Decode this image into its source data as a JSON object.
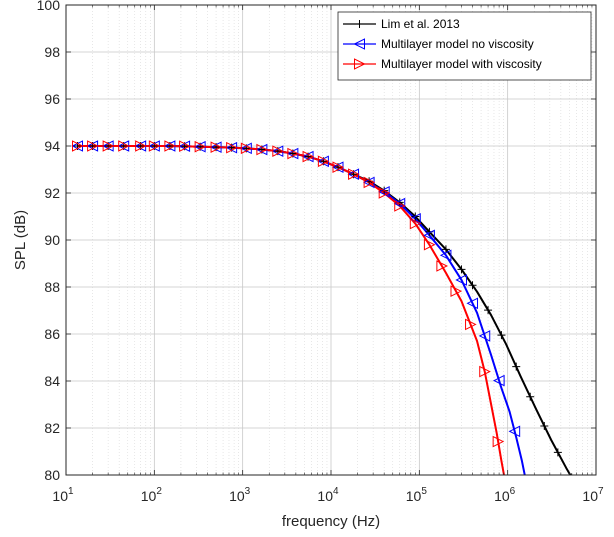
{
  "chart_data": {
    "type": "line",
    "title": "",
    "xlabel": "frequency (Hz)",
    "ylabel": "SPL (dB)",
    "xscale": "log",
    "xlim": [
      10,
      10000000
    ],
    "ylim": [
      80,
      100
    ],
    "x_ticks": [
      {
        "base": "10",
        "exp": "1"
      },
      {
        "base": "10",
        "exp": "2"
      },
      {
        "base": "10",
        "exp": "3"
      },
      {
        "base": "10",
        "exp": "4"
      },
      {
        "base": "10",
        "exp": "5"
      },
      {
        "base": "10",
        "exp": "6"
      },
      {
        "base": "10",
        "exp": "7"
      }
    ],
    "y_ticks": [
      "80",
      "82",
      "84",
      "86",
      "88",
      "90",
      "92",
      "94",
      "96",
      "98",
      "100"
    ],
    "grid": true,
    "legend_position": "top-right",
    "series": [
      {
        "name": "Lim et al. 2013",
        "color": "#000000",
        "marker": "plus",
        "x": [
          13.5,
          20,
          30,
          45,
          70,
          100,
          150,
          220,
          330,
          500,
          750,
          1100,
          1650,
          2500,
          3700,
          5500,
          8200,
          12000,
          18000,
          27000,
          40000,
          60000,
          90000,
          130000,
          200000,
          300000,
          450000,
          650000,
          950000,
          1400000,
          2100000,
          3100000,
          4600000,
          6800000,
          8500000
        ],
        "y": [
          94.0,
          94.0,
          94.0,
          94.0,
          94.0,
          94.0,
          94.0,
          93.99,
          93.97,
          93.95,
          93.93,
          93.9,
          93.85,
          93.78,
          93.68,
          93.55,
          93.35,
          93.1,
          92.8,
          92.5,
          92.1,
          91.6,
          91.0,
          90.35,
          89.6,
          88.75,
          87.8,
          86.8,
          85.6,
          84.2,
          82.8,
          81.5,
          80.3,
          79.2,
          78.6
        ]
      },
      {
        "name": "Multilayer model no viscosity",
        "color": "#0000ff",
        "marker": "triangle-left",
        "x": [
          13.5,
          20,
          30,
          45,
          70,
          100,
          150,
          220,
          330,
          500,
          750,
          1100,
          1650,
          2500,
          3700,
          5500,
          8200,
          12000,
          18000,
          27000,
          40000,
          60000,
          90000,
          130000,
          200000,
          300000,
          450000,
          650000,
          850000,
          1050000,
          1250000,
          1450000,
          1600000,
          1700000
        ],
        "y": [
          94.0,
          94.0,
          94.0,
          94.0,
          94.0,
          94.0,
          94.0,
          93.99,
          93.97,
          93.95,
          93.93,
          93.9,
          93.85,
          93.78,
          93.68,
          93.55,
          93.35,
          93.1,
          92.8,
          92.45,
          92.05,
          91.55,
          90.9,
          90.2,
          89.35,
          88.3,
          86.9,
          85.1,
          83.7,
          82.7,
          81.6,
          80.6,
          79.8,
          79.2
        ]
      },
      {
        "name": "Multilayer model with viscosity",
        "color": "#ff0000",
        "marker": "triangle-right",
        "x": [
          13.5,
          20,
          30,
          45,
          70,
          100,
          150,
          220,
          330,
          500,
          750,
          1100,
          1650,
          2500,
          3700,
          5500,
          8200,
          12000,
          18000,
          27000,
          40000,
          60000,
          90000,
          130000,
          200000,
          300000,
          450000,
          550000,
          650000,
          750000,
          850000,
          950000,
          1000000
        ],
        "y": [
          94.0,
          94.0,
          94.0,
          94.0,
          94.0,
          94.0,
          94.0,
          93.99,
          93.97,
          93.95,
          93.93,
          93.9,
          93.85,
          93.78,
          93.68,
          93.55,
          93.35,
          93.1,
          92.8,
          92.45,
          92.0,
          91.45,
          90.7,
          89.8,
          88.6,
          87.4,
          85.7,
          84.4,
          83.0,
          81.8,
          80.6,
          79.6,
          79.0
        ]
      }
    ],
    "marker_x": {
      "Lim et al. 2013": [
        13.5,
        20,
        30,
        45,
        70,
        100,
        150,
        220,
        330,
        500,
        750,
        1100,
        1650,
        2500,
        3700,
        5500,
        8200,
        12000,
        18000,
        27000,
        40000,
        60000,
        90000,
        130000,
        200000,
        300000,
        400000,
        600000,
        850000,
        1250000,
        1800000,
        2600000,
        3700000,
        5300000
      ],
      "Multilayer model no viscosity": [
        13.5,
        20,
        30,
        45,
        70,
        100,
        150,
        220,
        330,
        500,
        750,
        1100,
        1650,
        2500,
        3700,
        5500,
        8200,
        12000,
        18000,
        27000,
        40000,
        60000,
        90000,
        130000,
        200000,
        300000,
        400000,
        550000,
        800000,
        1200000
      ],
      "Multilayer model with viscosity": [
        13.5,
        20,
        30,
        45,
        70,
        100,
        150,
        220,
        330,
        500,
        750,
        1100,
        1650,
        2500,
        3700,
        5500,
        8200,
        12000,
        18000,
        27000,
        40000,
        60000,
        90000,
        130000,
        180000,
        260000,
        380000,
        550000,
        780000
      ]
    }
  }
}
